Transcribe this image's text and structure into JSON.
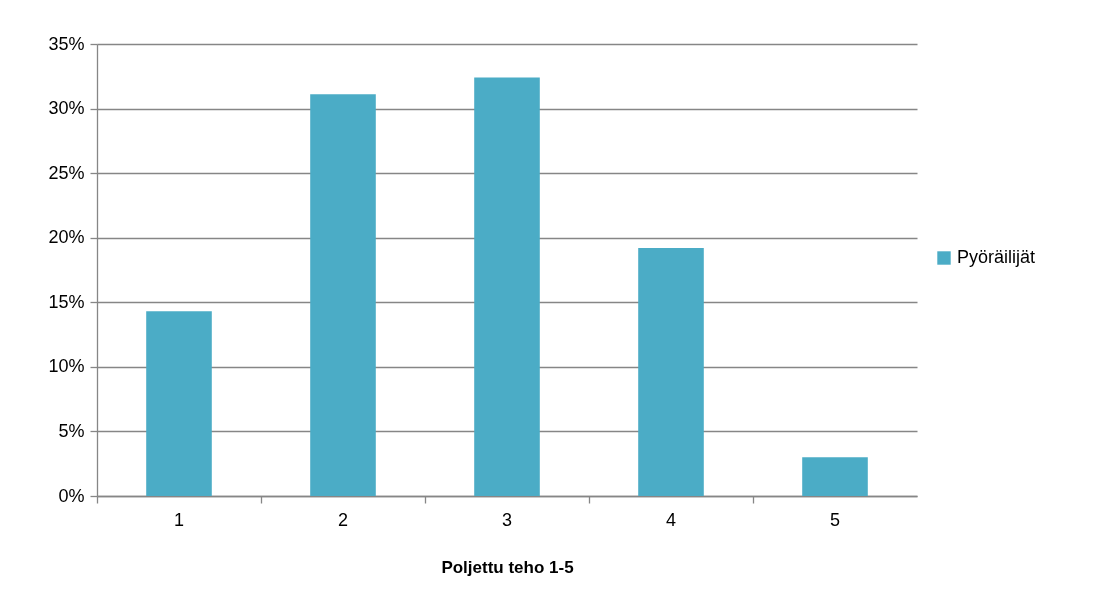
{
  "chart_data": {
    "type": "bar",
    "xlabel": "Poljettu teho 1-5",
    "categories": [
      "1",
      "2",
      "3",
      "4",
      "5"
    ],
    "series": [
      {
        "name": "Pyöräilijät",
        "color": "#4bacc6",
        "values": [
          14.3,
          31.1,
          32.4,
          19.2,
          3.0
        ]
      }
    ],
    "ylim": [
      0,
      35
    ],
    "yticks": [
      {
        "value": 0,
        "label": "0%"
      },
      {
        "value": 5,
        "label": "5%"
      },
      {
        "value": 10,
        "label": "10%"
      },
      {
        "value": 15,
        "label": "15%"
      },
      {
        "value": 20,
        "label": "20%"
      },
      {
        "value": 25,
        "label": "25%"
      },
      {
        "value": 30,
        "label": "30%"
      },
      {
        "value": 35,
        "label": "35%"
      }
    ],
    "grid": "y",
    "legend": "right"
  }
}
